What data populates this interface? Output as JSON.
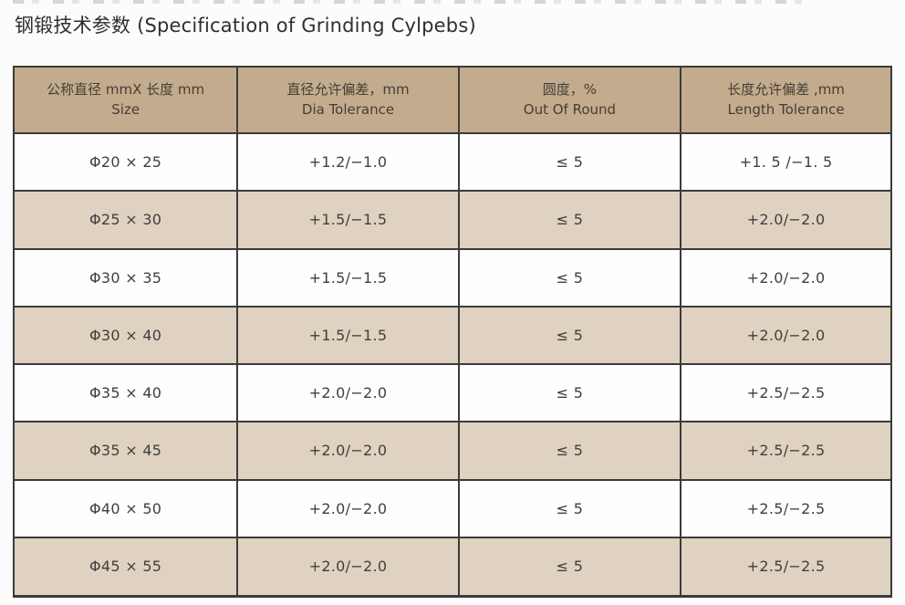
{
  "page": {
    "title": "钢锻技术参数 (Specification of Grinding Cylpebs)"
  },
  "colors": {
    "header_bg": "#c3ab8e",
    "row_alt_bg": "#e0d2c0",
    "border": "#3b3b3b"
  },
  "table": {
    "columns": [
      {
        "zh": "公称直径 mmX 长度 mm",
        "en": "Size",
        "key": "size"
      },
      {
        "zh": "直径允许偏差，mm",
        "en": "Dia Tolerance",
        "key": "dia_tolerance"
      },
      {
        "zh": "圆度，%",
        "en": "Out Of Round",
        "key": "out_of_round"
      },
      {
        "zh": "长度允许偏差 ,mm",
        "en": "Length Tolerance",
        "key": "length_tolerance"
      }
    ],
    "rows": [
      {
        "size": "Φ20 × 25",
        "dia_tolerance": "+1.2/−1.0",
        "out_of_round": "≤ 5",
        "length_tolerance": "+1. 5 /−1. 5"
      },
      {
        "size": "Φ25 × 30",
        "dia_tolerance": "+1.5/−1.5",
        "out_of_round": "≤ 5",
        "length_tolerance": "+2.0/−2.0"
      },
      {
        "size": "Φ30 × 35",
        "dia_tolerance": "+1.5/−1.5",
        "out_of_round": "≤ 5",
        "length_tolerance": "+2.0/−2.0"
      },
      {
        "size": "Φ30 × 40",
        "dia_tolerance": "+1.5/−1.5",
        "out_of_round": "≤ 5",
        "length_tolerance": "+2.0/−2.0"
      },
      {
        "size": "Φ35 × 40",
        "dia_tolerance": "+2.0/−2.0",
        "out_of_round": "≤ 5",
        "length_tolerance": "+2.5/−2.5"
      },
      {
        "size": "Φ35 × 45",
        "dia_tolerance": "+2.0/−2.0",
        "out_of_round": "≤ 5",
        "length_tolerance": "+2.5/−2.5"
      },
      {
        "size": "Φ40 × 50",
        "dia_tolerance": "+2.0/−2.0",
        "out_of_round": "≤ 5",
        "length_tolerance": "+2.5/−2.5"
      },
      {
        "size": "Φ45 × 55",
        "dia_tolerance": "+2.0/−2.0",
        "out_of_round": "≤ 5",
        "length_tolerance": "+2.5/−2.5"
      }
    ]
  }
}
